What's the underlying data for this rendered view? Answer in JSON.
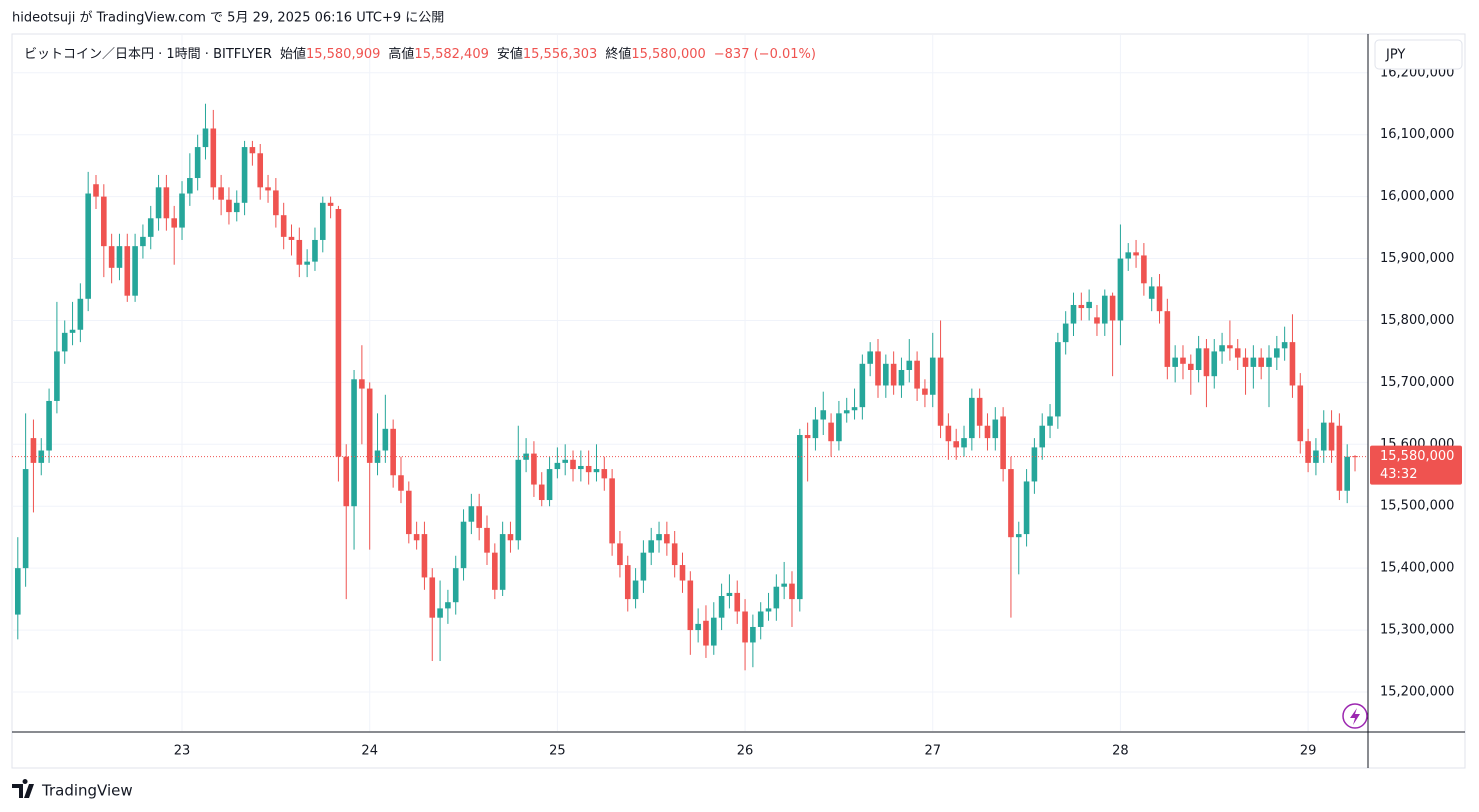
{
  "chart_data": {
    "type": "candlestick",
    "publisher": "hideotsuji が TradingView.com で 5月 29, 2025 06:16 UTC+9 に公開",
    "title": "ビットコイン／日本円 · 1時間 · BITFLYER",
    "legend": [
      {
        "label": "始値",
        "value": "15,580,909"
      },
      {
        "label": "高値",
        "value": "15,582,409"
      },
      {
        "label": "安値",
        "value": "15,556,303"
      },
      {
        "label": "終値",
        "value": "15,580,000"
      }
    ],
    "change": "−837 (−0.01%)",
    "currency": "JPY",
    "last_price": {
      "value": 15580000,
      "label": "15,580,000"
    },
    "countdown": "43:32",
    "brand": "TradingView",
    "up_color": "#26a69a",
    "down_color": "#ef5350",
    "grid": true,
    "ylim": [
      15137000,
      16261000
    ],
    "yticks": [
      {
        "value": 15200000,
        "label": "15,200,000"
      },
      {
        "value": 15300000,
        "label": "15,300,000"
      },
      {
        "value": 15400000,
        "label": "15,400,000"
      },
      {
        "value": 15500000,
        "label": "15,500,000"
      },
      {
        "value": 15600000,
        "label": "15,600,000"
      },
      {
        "value": 15700000,
        "label": "15,700,000"
      },
      {
        "value": 15800000,
        "label": "15,800,000"
      },
      {
        "value": 15900000,
        "label": "15,900,000"
      },
      {
        "value": 16000000,
        "label": "16,000,000"
      },
      {
        "value": 16100000,
        "label": "16,100,000"
      },
      {
        "value": 16200000,
        "label": "16,200,000"
      }
    ],
    "categories": [
      null,
      null,
      null,
      null,
      null,
      null,
      null,
      null,
      null,
      null,
      null,
      null,
      null,
      null,
      null,
      null,
      null,
      null,
      null,
      null,
      null,
      "23",
      null,
      null,
      null,
      null,
      null,
      null,
      null,
      null,
      null,
      null,
      null,
      null,
      null,
      null,
      null,
      null,
      null,
      null,
      null,
      null,
      null,
      null,
      null,
      "24",
      null,
      null,
      null,
      null,
      null,
      null,
      null,
      null,
      null,
      null,
      null,
      null,
      null,
      null,
      null,
      null,
      null,
      null,
      null,
      null,
      null,
      null,
      null,
      "25",
      null,
      null,
      null,
      null,
      null,
      null,
      null,
      null,
      null,
      null,
      null,
      null,
      null,
      null,
      null,
      null,
      null,
      null,
      null,
      null,
      null,
      null,
      null,
      "26",
      null,
      null,
      null,
      null,
      null,
      null,
      null,
      null,
      null,
      null,
      null,
      null,
      null,
      null,
      null,
      null,
      null,
      null,
      null,
      null,
      null,
      null,
      null,
      "27",
      null,
      null,
      null,
      null,
      null,
      null,
      null,
      null,
      null,
      null,
      null,
      null,
      null,
      null,
      null,
      null,
      null,
      null,
      null,
      null,
      null,
      null,
      null,
      "28",
      null,
      null,
      null,
      null,
      null,
      null,
      null,
      null,
      null,
      null,
      null,
      null,
      null,
      null,
      null,
      null,
      null,
      null,
      null,
      null,
      null,
      null,
      null,
      "29",
      null,
      null,
      null,
      null,
      null,
      null
    ],
    "open": [
      15325000,
      15400000,
      15610000,
      15570000,
      15590000,
      15670000,
      15750000,
      15780000,
      15785000,
      15835000,
      16020000,
      16000000,
      15920000,
      15885000,
      15920000,
      15840000,
      15920000,
      15935000,
      15965000,
      16015000,
      15965000,
      15950000,
      16005000,
      16030000,
      16080000,
      16110000,
      16015000,
      15995000,
      15975000,
      15990000,
      16080000,
      16070000,
      16015000,
      16010000,
      15970000,
      15935000,
      15930000,
      15890000,
      15895000,
      15930000,
      15990000,
      15980000,
      15580000,
      15500000,
      15705000,
      15690000,
      15570000,
      15590000,
      15625000,
      15550000,
      15525000,
      15455000,
      15455000,
      15385000,
      15320000,
      15335000,
      15345000,
      15400000,
      15475000,
      15500000,
      15465000,
      15425000,
      15365000,
      15455000,
      15445000,
      15575000,
      15585000,
      15535000,
      15510000,
      15560000,
      15570000,
      15575000,
      15560000,
      15565000,
      15555000,
      15560000,
      15545000,
      15440000,
      15405000,
      15350000,
      15380000,
      15425000,
      15445000,
      15455000,
      15440000,
      15405000,
      15380000,
      15300000,
      15315000,
      15275000,
      15320000,
      15355000,
      15360000,
      15330000,
      15280000,
      15305000,
      15330000,
      15335000,
      15370000,
      15375000,
      15350000,
      15615000,
      15610000,
      15640000,
      15635000,
      15605000,
      15650000,
      15655000,
      15660000,
      15730000,
      15750000,
      15695000,
      15730000,
      15695000,
      15720000,
      15735000,
      15690000,
      15680000,
      15740000,
      15630000,
      15605000,
      15595000,
      15610000,
      15675000,
      15630000,
      15610000,
      15645000,
      15560000,
      15450000,
      15455000,
      15540000,
      15595000,
      15630000,
      15645000,
      15765000,
      15795000,
      15825000,
      15820000,
      15805000,
      15795000,
      15840000,
      15800000,
      15900000,
      15910000,
      15905000,
      15835000,
      15855000,
      15815000,
      15725000,
      15740000,
      15730000,
      15720000,
      15755000,
      15710000,
      15750000,
      15760000,
      15755000,
      15740000,
      15725000,
      15740000,
      15725000,
      15740000,
      15755000,
      15765000,
      15695000,
      15605000,
      15570000,
      15590000,
      15635000,
      15630000,
      15525000,
      15580909
    ],
    "high": [
      15450000,
      15650000,
      15640000,
      15610000,
      15690000,
      15830000,
      15800000,
      15830000,
      15860000,
      16040000,
      16035000,
      16020000,
      15940000,
      15940000,
      15940000,
      15940000,
      15955000,
      15985000,
      16035000,
      16035000,
      15985000,
      16025000,
      16070000,
      16100000,
      16150000,
      16140000,
      16035000,
      16015000,
      16010000,
      16090000,
      16090000,
      16085000,
      16035000,
      16030000,
      15990000,
      15955000,
      15950000,
      15915000,
      15950000,
      16000000,
      16000000,
      15985000,
      15600000,
      15720000,
      15760000,
      15700000,
      15650000,
      15680000,
      15640000,
      15580000,
      15540000,
      15475000,
      15475000,
      15400000,
      15380000,
      15365000,
      15420000,
      15495000,
      15520000,
      15520000,
      15485000,
      15440000,
      15475000,
      15475000,
      15630000,
      15610000,
      15605000,
      15555000,
      15580000,
      15595000,
      15600000,
      15590000,
      15590000,
      15590000,
      15600000,
      15580000,
      15560000,
      15460000,
      15420000,
      15400000,
      15445000,
      15465000,
      15475000,
      15475000,
      15460000,
      15425000,
      15395000,
      15335000,
      15340000,
      15345000,
      15375000,
      15390000,
      15380000,
      15350000,
      15325000,
      15345000,
      15360000,
      15390000,
      15410000,
      15395000,
      15625000,
      15635000,
      15660000,
      15685000,
      15650000,
      15670000,
      15675000,
      15690000,
      15745000,
      15765000,
      15770000,
      15745000,
      15750000,
      15740000,
      15770000,
      15750000,
      15705000,
      15780000,
      15800000,
      15650000,
      15625000,
      15630000,
      15690000,
      15690000,
      15650000,
      15660000,
      15660000,
      15580000,
      15475000,
      15560000,
      15610000,
      15650000,
      15665000,
      15780000,
      15815000,
      15845000,
      15845000,
      15850000,
      15825000,
      15850000,
      15845000,
      15955000,
      15925000,
      15930000,
      15925000,
      15870000,
      15875000,
      15835000,
      15760000,
      15760000,
      15745000,
      15775000,
      15770000,
      15770000,
      15780000,
      15800000,
      15770000,
      15755000,
      15760000,
      15755000,
      15760000,
      15775000,
      15790000,
      15810000,
      15715000,
      15625000,
      15610000,
      15655000,
      15655000,
      15650000,
      15600000,
      15582409
    ],
    "low": [
      15285000,
      15370000,
      15490000,
      15550000,
      15570000,
      15650000,
      15730000,
      15760000,
      15765000,
      15815000,
      15980000,
      15870000,
      15860000,
      15865000,
      15830000,
      15830000,
      15900000,
      15915000,
      15945000,
      15945000,
      15890000,
      15930000,
      15985000,
      16010000,
      16060000,
      15995000,
      15970000,
      15955000,
      15960000,
      15970000,
      16050000,
      15995000,
      15990000,
      15950000,
      15915000,
      15905000,
      15870000,
      15870000,
      15880000,
      15910000,
      15965000,
      15540000,
      15350000,
      15430000,
      15600000,
      15430000,
      15550000,
      15570000,
      15530000,
      15505000,
      15440000,
      15430000,
      15365000,
      15250000,
      15250000,
      15310000,
      15325000,
      15380000,
      15455000,
      15445000,
      15405000,
      15350000,
      15355000,
      15425000,
      15430000,
      15555000,
      15515000,
      15500000,
      15500000,
      15545000,
      15550000,
      15540000,
      15540000,
      15535000,
      15540000,
      15525000,
      15420000,
      15385000,
      15330000,
      15335000,
      15360000,
      15405000,
      15425000,
      15420000,
      15385000,
      15360000,
      15260000,
      15280000,
      15255000,
      15260000,
      15300000,
      15335000,
      15310000,
      15235000,
      15240000,
      15285000,
      15315000,
      15315000,
      15350000,
      15305000,
      15330000,
      15540000,
      15590000,
      15615000,
      15580000,
      15590000,
      15635000,
      15640000,
      15640000,
      15710000,
      15675000,
      15675000,
      15680000,
      15675000,
      15700000,
      15670000,
      15660000,
      15660000,
      15610000,
      15575000,
      15575000,
      15580000,
      15590000,
      15610000,
      15590000,
      15590000,
      15540000,
      15320000,
      15390000,
      15435000,
      15520000,
      15575000,
      15610000,
      15625000,
      15745000,
      15775000,
      15800000,
      15800000,
      15775000,
      15775000,
      15710000,
      15760000,
      15880000,
      15885000,
      15840000,
      15815000,
      15795000,
      15705000,
      15700000,
      15705000,
      15680000,
      15700000,
      15660000,
      15690000,
      15730000,
      15735000,
      15720000,
      15680000,
      15690000,
      15705000,
      15660000,
      15720000,
      15735000,
      15675000,
      15585000,
      15555000,
      15550000,
      15570000,
      15570000,
      15510000,
      15505000,
      15556303
    ],
    "close": [
      15400000,
      15560000,
      15570000,
      15590000,
      15670000,
      15750000,
      15780000,
      15785000,
      15835000,
      16005000,
      16000000,
      15920000,
      15885000,
      15920000,
      15840000,
      15920000,
      15935000,
      15965000,
      16015000,
      15965000,
      15950000,
      16005000,
      16030000,
      16080000,
      16110000,
      16015000,
      15995000,
      15975000,
      15990000,
      16080000,
      16070000,
      16015000,
      16010000,
      15970000,
      15935000,
      15930000,
      15890000,
      15895000,
      15930000,
      15990000,
      15985000,
      15580000,
      15500000,
      15705000,
      15690000,
      15570000,
      15590000,
      15625000,
      15550000,
      15525000,
      15455000,
      15445000,
      15385000,
      15320000,
      15335000,
      15345000,
      15400000,
      15475000,
      15500000,
      15465000,
      15425000,
      15365000,
      15455000,
      15445000,
      15575000,
      15585000,
      15535000,
      15510000,
      15560000,
      15570000,
      15575000,
      15560000,
      15565000,
      15555000,
      15560000,
      15545000,
      15440000,
      15405000,
      15350000,
      15380000,
      15425000,
      15445000,
      15455000,
      15440000,
      15405000,
      15380000,
      15300000,
      15310000,
      15275000,
      15320000,
      15355000,
      15360000,
      15330000,
      15280000,
      15305000,
      15330000,
      15335000,
      15370000,
      15375000,
      15350000,
      15615000,
      15610000,
      15640000,
      15655000,
      15605000,
      15650000,
      15655000,
      15660000,
      15730000,
      15750000,
      15695000,
      15730000,
      15695000,
      15720000,
      15735000,
      15690000,
      15680000,
      15740000,
      15630000,
      15605000,
      15595000,
      15610000,
      15675000,
      15630000,
      15610000,
      15640000,
      15560000,
      15450000,
      15455000,
      15540000,
      15595000,
      15630000,
      15645000,
      15765000,
      15795000,
      15825000,
      15820000,
      15830000,
      15795000,
      15840000,
      15800000,
      15900000,
      15910000,
      15905000,
      15860000,
      15855000,
      15815000,
      15725000,
      15740000,
      15730000,
      15720000,
      15755000,
      15710000,
      15750000,
      15760000,
      15755000,
      15740000,
      15725000,
      15740000,
      15725000,
      15740000,
      15755000,
      15765000,
      15695000,
      15605000,
      15570000,
      15590000,
      15635000,
      15590000,
      15525000,
      15580000,
      15580000
    ]
  }
}
